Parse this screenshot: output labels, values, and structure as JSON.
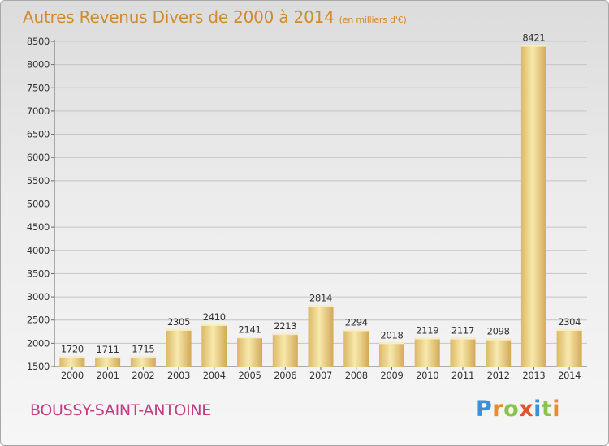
{
  "header": {
    "title": "Autres Revenus Divers de 2000 à 2014",
    "unit_note": "(en milliers d'€)"
  },
  "footer": {
    "commune": "BOUSSY-SAINT-ANTOINE",
    "logo_text": "Proxiti"
  },
  "colors": {
    "title": "#d18a2e",
    "commune": "#c53a82",
    "bar_light": "#f5e6a6",
    "bar_dark": "#d9b05e"
  },
  "chart_data": {
    "type": "bar",
    "title": "Autres Revenus Divers de 2000 à 2014",
    "subtitle": "(en milliers d'€)",
    "categories": [
      "2000",
      "2001",
      "2002",
      "2003",
      "2004",
      "2005",
      "2006",
      "2007",
      "2008",
      "2009",
      "2010",
      "2011",
      "2012",
      "2013",
      "2014"
    ],
    "values": [
      1720,
      1711,
      1715,
      2305,
      2410,
      2141,
      2213,
      2814,
      2294,
      2018,
      2119,
      2117,
      2098,
      8421,
      2304
    ],
    "data_labels": [
      "1720",
      "1711",
      "1715",
      "2305",
      "2410",
      "2141",
      "2213",
      "2814",
      "2294",
      "2018",
      "2119",
      "2117",
      "2098",
      "8421",
      "2304"
    ],
    "ylim": [
      1500,
      8500
    ],
    "yticks": [
      1500,
      2000,
      2500,
      3000,
      3500,
      4000,
      4500,
      5000,
      5500,
      6000,
      6500,
      7000,
      7500,
      8000,
      8500
    ],
    "ytick_labels": [
      "1500",
      "2000",
      "2500",
      "3000",
      "3500",
      "4000",
      "4500",
      "5000",
      "5500",
      "6000",
      "6500",
      "7000",
      "7500",
      "8000",
      "8500"
    ],
    "grid": "horizontal"
  }
}
